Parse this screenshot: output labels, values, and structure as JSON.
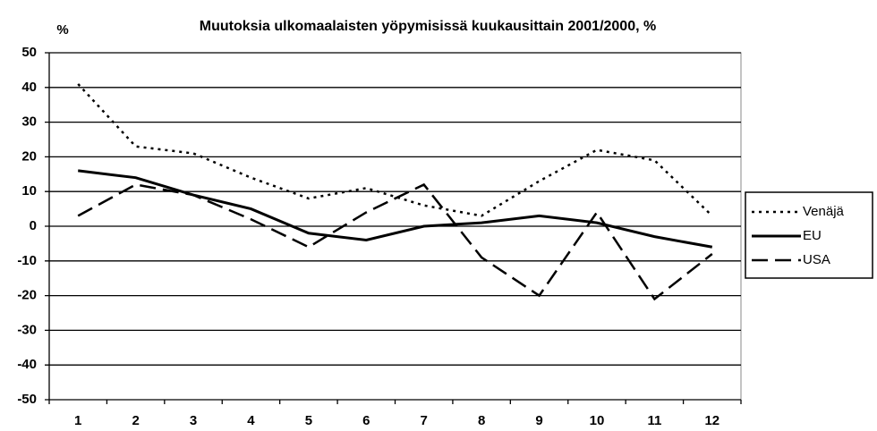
{
  "chart_data": {
    "type": "line",
    "title": "Muutoksia ulkomaalaisten yöpymisissä kuukausittain 2001/2000, %",
    "y_label": "%",
    "categories": [
      "1",
      "2",
      "3",
      "4",
      "5",
      "6",
      "7",
      "8",
      "9",
      "10",
      "11",
      "12"
    ],
    "series": [
      {
        "name": "Venäjä",
        "color": "#000000",
        "line_style": "dotted",
        "values": [
          41,
          23,
          21,
          14,
          8,
          11,
          6,
          3,
          13,
          22,
          19,
          3
        ]
      },
      {
        "name": "EU",
        "color": "#000000",
        "line_style": "solid",
        "values": [
          16,
          14,
          9,
          5,
          -2,
          -4,
          0,
          1,
          3,
          1,
          -3,
          -6
        ]
      },
      {
        "name": "USA",
        "color": "#000000",
        "line_style": "dashed",
        "values": [
          3,
          12,
          9,
          2,
          -6,
          4,
          12,
          -9,
          -20,
          4,
          -21,
          -8
        ]
      }
    ],
    "ylim": [
      -50,
      50
    ],
    "yticks": [
      -50,
      -40,
      -30,
      -20,
      -10,
      0,
      10,
      20,
      30,
      40,
      50
    ],
    "grid": true,
    "legend": "right"
  }
}
